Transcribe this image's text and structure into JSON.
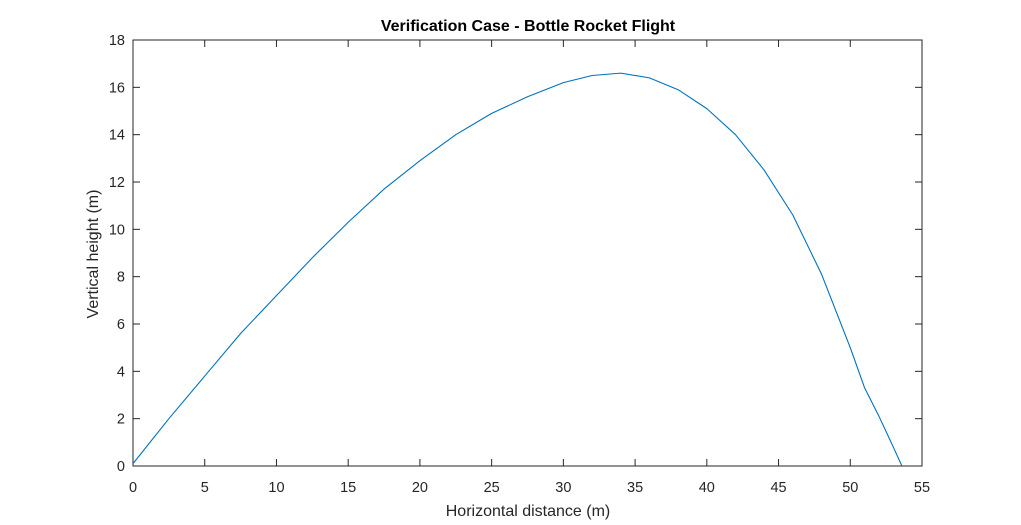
{
  "chart_data": {
    "type": "line",
    "title": "Verification Case - Bottle Rocket Flight",
    "xlabel": "Horizontal distance (m)",
    "ylabel": "Vertical height (m)",
    "xlim": [
      0,
      55
    ],
    "ylim": [
      0,
      18
    ],
    "xticks": [
      0,
      5,
      10,
      15,
      20,
      25,
      30,
      35,
      40,
      45,
      50,
      55
    ],
    "yticks": [
      0,
      2,
      4,
      6,
      8,
      10,
      12,
      14,
      16,
      18
    ],
    "grid": false,
    "legend": "none",
    "line_color": "#0072BD",
    "series": [
      {
        "x": [
          0,
          2.5,
          5,
          7.5,
          10,
          12.5,
          15,
          17.5,
          20,
          22.5,
          25,
          27.5,
          30,
          32,
          34,
          36,
          38,
          40,
          42,
          44,
          46,
          48,
          50,
          51,
          52,
          53,
          53.6
        ],
        "y": [
          0.1,
          2.0,
          3.8,
          5.6,
          7.2,
          8.8,
          10.3,
          11.7,
          12.9,
          14.0,
          14.9,
          15.6,
          16.2,
          16.5,
          16.6,
          16.4,
          15.9,
          15.1,
          14.0,
          12.5,
          10.6,
          8.1,
          5.0,
          3.3,
          2.1,
          0.8,
          0.0
        ]
      }
    ]
  }
}
